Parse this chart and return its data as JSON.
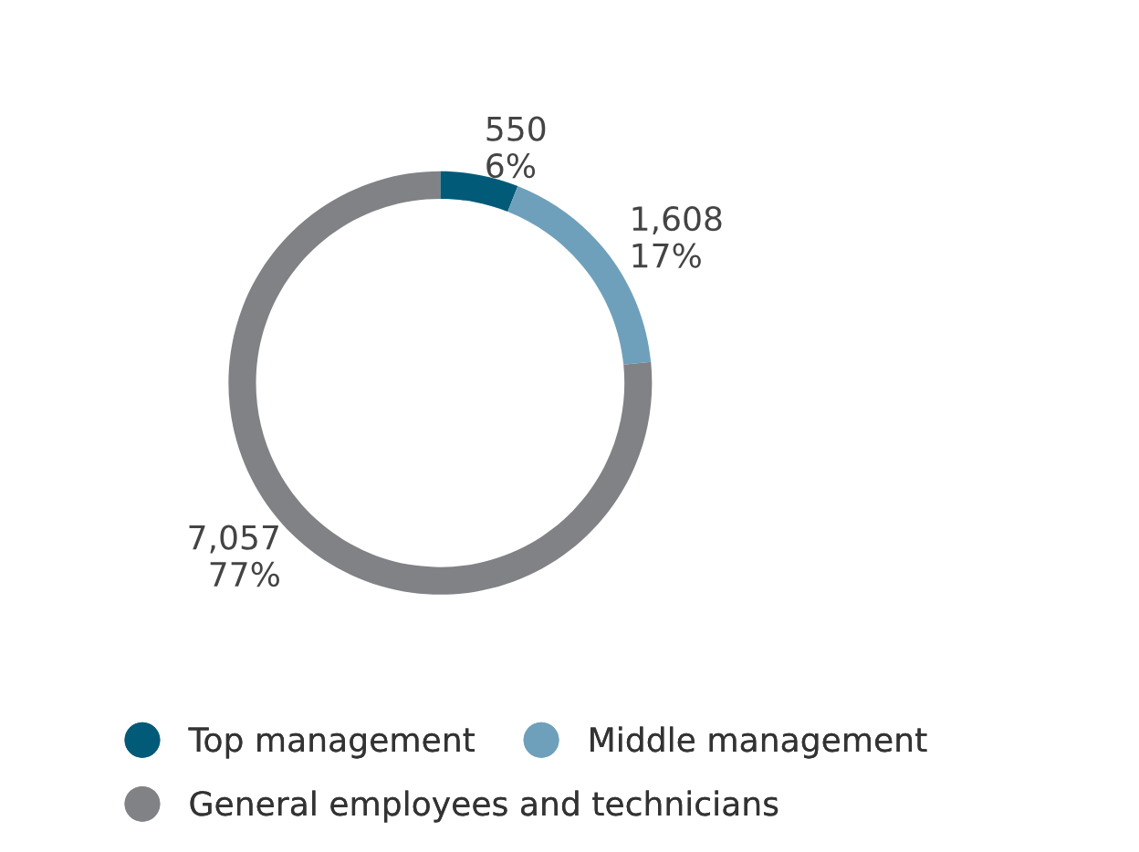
{
  "chart_data": {
    "type": "donut",
    "categories": [
      "Top management",
      "Middle management",
      "General employees and technicians"
    ],
    "values": [
      550,
      1608,
      7057
    ],
    "colors": [
      "#005a78",
      "#6fa0bb",
      "#808285"
    ],
    "value_labels": [
      "550\n6%",
      "1,608\n17%",
      "7,057\n77%"
    ],
    "legend": "bottom"
  }
}
